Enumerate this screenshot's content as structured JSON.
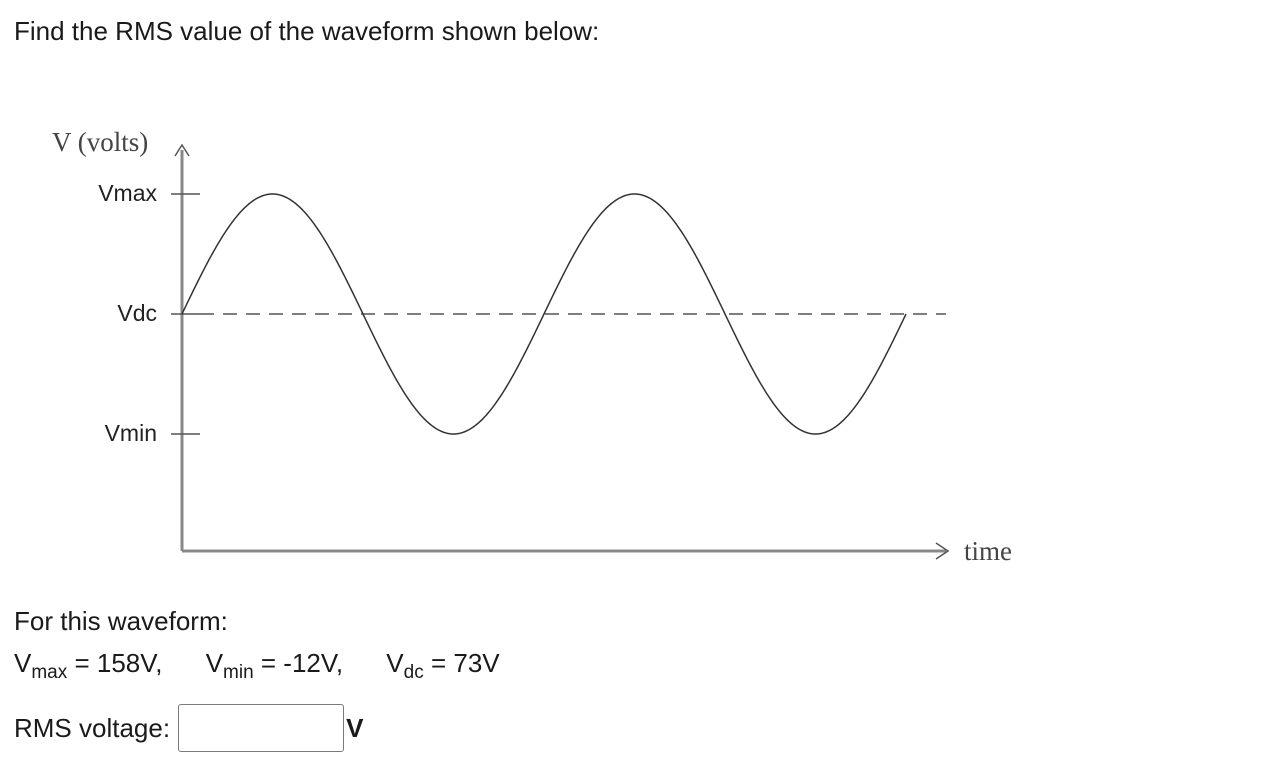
{
  "question": "Find the RMS value of the waveform shown below:",
  "diagram": {
    "y_axis_title": "V (volts)",
    "x_axis_title": "time",
    "ticks": {
      "vmax": "Vmax",
      "vdc": "Vdc",
      "vmin": "Vmin"
    },
    "periods_shown": 2,
    "waveform": "sine offset by Vdc"
  },
  "given": {
    "title": "For this waveform:",
    "vmax": {
      "symbol": "V",
      "subscript": "max",
      "value": "= 158V,"
    },
    "vmin": {
      "symbol": "V",
      "subscript": "min",
      "value": "= -12V,"
    },
    "vdc": {
      "symbol": "V",
      "subscript": "dc",
      "value": "= 73V"
    }
  },
  "answer": {
    "label": "RMS voltage:",
    "value": "",
    "unit": "V"
  }
}
